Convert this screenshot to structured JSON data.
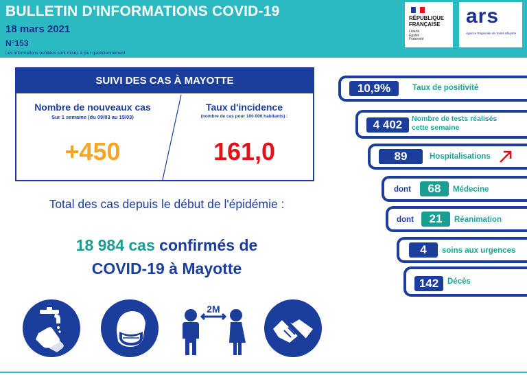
{
  "header": {
    "title": "BULLETIN D'INFORMATIONS COVID-19",
    "date": "18 mars 2021",
    "issue": "N°153",
    "note": "Les informations publiées sont mises à jour quotidiennement",
    "rf_logo_text": "RÉPUBLIQUE\nFRANÇAISE",
    "rf_motto": "Liberté\nÉgalité\nFraternité",
    "ars_logo_text": "ars",
    "ars_logo_sub": "Agence Régionale de Santé Mayotte"
  },
  "suivi": {
    "heading": "SUIVI DES CAS À MAYOTTE",
    "new_cases_label": "Nombre de nouveaux cas",
    "new_cases_sub": "Sur 1 semaine (du 09/03 au 15/03)",
    "new_cases_value": "+450",
    "incidence_label": "Taux d'incidence",
    "incidence_sub": "(nombre de cas pour 100 000 habitants) :",
    "incidence_value": "161,0"
  },
  "total": {
    "line1": "Total des cas depuis le début de l'épidémie :",
    "count": "18 984 cas",
    "confirmed_a": "confirmés de",
    "confirmed_b": "COVID-19 à Mayotte"
  },
  "stats": [
    {
      "value": "10,9%",
      "label": "Taux de positivité"
    },
    {
      "value": "4 402",
      "label": "Nombre de tests réalisés cette semaine"
    },
    {
      "value": "89",
      "label": "Hospitalisations",
      "trend": "up-arrow"
    },
    {
      "prefix": "dont",
      "value": "68",
      "label": "Médecine"
    },
    {
      "prefix": "dont",
      "value": "21",
      "label": "Réanimation"
    },
    {
      "value": "4",
      "label": "soins aux urgences"
    },
    {
      "value": "142",
      "label": "Décès"
    }
  ],
  "icons": [
    "hand-washing-icon",
    "mask-icon",
    "distancing-icon",
    "no-handshake-icon"
  ],
  "distance_label": "2M",
  "colors": {
    "teal": "#2cbac2",
    "navy": "#1b3d9c",
    "orange": "#f6a623",
    "red": "#e2111a",
    "green": "#1a9e94"
  }
}
